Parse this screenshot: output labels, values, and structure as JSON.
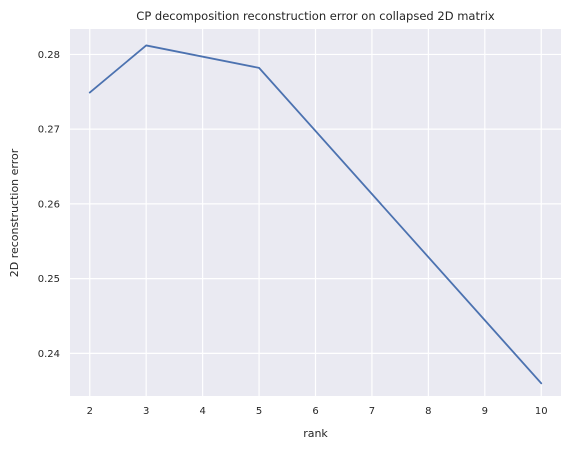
{
  "chart_data": {
    "type": "line",
    "title": "CP decomposition reconstruction error on collapsed 2D matrix",
    "xlabel": "rank",
    "ylabel": "2D reconstruction error",
    "xlim": [
      1.65,
      10.35
    ],
    "ylim": [
      0.2343,
      0.2834
    ],
    "x_ticks": [
      2,
      3,
      4,
      5,
      6,
      7,
      8,
      9,
      10
    ],
    "y_ticks": [
      0.24,
      0.25,
      0.26,
      0.27,
      0.28
    ],
    "y_tick_labels": [
      "0.24",
      "0.25",
      "0.26",
      "0.27",
      "0.28"
    ],
    "grid": true,
    "series": [
      {
        "color": "#4c72b0",
        "x": [
          2,
          3,
          5,
          10
        ],
        "y": [
          0.2749,
          0.2812,
          0.2782,
          0.236
        ]
      }
    ]
  },
  "colors": {
    "plot_background": "#eaeaf2",
    "grid": "#ffffff",
    "line": "#4c72b0"
  }
}
